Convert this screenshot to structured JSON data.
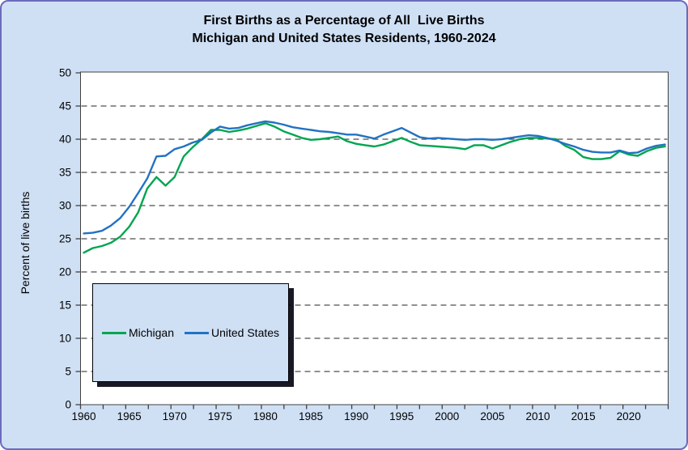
{
  "page": {
    "background_color": "#cfe0f5",
    "frame_border_color": "#6b6bbe",
    "plot_background": "#ffffff",
    "plot_border_color": "#404040",
    "gridline_color": "#4d4d4d"
  },
  "chart_data": {
    "type": "line",
    "title_line1": "First Births as a Percentage of All  Live Births",
    "title_line2": "Michigan and United States Residents, 1960-2024",
    "ylabel": "Percent of live births",
    "ylim": [
      0,
      50
    ],
    "y_tick_interval": 5,
    "y_tick_labels": [
      "0",
      "5",
      "10",
      "15",
      "20",
      "25",
      "30",
      "35",
      "40",
      "45",
      "50"
    ],
    "x_tick_labels": [
      "1960",
      "1965",
      "1970",
      "1975",
      "1980",
      "1985",
      "1990",
      "1995",
      "2000",
      "2005",
      "2010",
      "2015",
      "2020"
    ],
    "x_tick_years": [
      1960,
      1965,
      1970,
      1975,
      1980,
      1985,
      1990,
      1995,
      2000,
      2005,
      2010,
      2015,
      2020
    ],
    "minor_tick_interval_years": 2.5,
    "grid": "horizontal-dashed",
    "legend_position": "inside-lower-left",
    "x": [
      1960,
      1961,
      1962,
      1963,
      1964,
      1965,
      1966,
      1967,
      1968,
      1969,
      1970,
      1971,
      1972,
      1973,
      1974,
      1975,
      1976,
      1977,
      1978,
      1979,
      1980,
      1981,
      1982,
      1983,
      1984,
      1985,
      1986,
      1987,
      1988,
      1989,
      1990,
      1991,
      1992,
      1993,
      1994,
      1995,
      1996,
      1997,
      1998,
      1999,
      2000,
      2001,
      2002,
      2003,
      2004,
      2005,
      2006,
      2007,
      2008,
      2009,
      2010,
      2011,
      2012,
      2013,
      2014,
      2015,
      2016,
      2017,
      2018,
      2019,
      2020,
      2021,
      2022,
      2023,
      2024
    ],
    "series": [
      {
        "name": "Michigan",
        "color": "#00a550",
        "values": [
          22.9,
          23.6,
          23.9,
          24.4,
          25.3,
          26.8,
          29.0,
          32.6,
          34.3,
          33.0,
          34.3,
          37.4,
          38.8,
          40.0,
          41.4,
          41.4,
          41.1,
          41.3,
          41.6,
          42.0,
          42.4,
          41.9,
          41.2,
          40.7,
          40.2,
          39.9,
          40.0,
          40.2,
          40.4,
          39.7,
          39.3,
          39.1,
          38.9,
          39.2,
          39.7,
          40.2,
          39.6,
          39.1,
          39.0,
          38.9,
          38.8,
          38.7,
          38.5,
          39.1,
          39.1,
          38.6,
          39.1,
          39.6,
          40.0,
          40.2,
          40.2,
          40.1,
          40.0,
          39.0,
          38.4,
          37.3,
          37.0,
          37.0,
          37.2,
          38.2,
          37.7,
          37.5,
          38.2,
          38.7,
          38.9
        ]
      },
      {
        "name": "United States",
        "color": "#2272c3",
        "values": [
          25.8,
          25.9,
          26.2,
          27.0,
          28.1,
          29.8,
          31.9,
          34.1,
          37.4,
          37.5,
          38.5,
          38.9,
          39.5,
          39.9,
          41.0,
          41.9,
          41.6,
          41.7,
          42.1,
          42.4,
          42.7,
          42.5,
          42.2,
          41.8,
          41.6,
          41.4,
          41.2,
          41.1,
          40.9,
          40.7,
          40.7,
          40.4,
          40.1,
          40.7,
          41.2,
          41.7,
          41.0,
          40.3,
          40.1,
          40.2,
          40.1,
          40.0,
          39.9,
          40.0,
          40.0,
          39.9,
          40.0,
          40.2,
          40.4,
          40.6,
          40.5,
          40.2,
          39.8,
          39.3,
          38.9,
          38.4,
          38.1,
          38.0,
          38.0,
          38.3,
          37.9,
          38.0,
          38.6,
          39.0,
          39.2
        ]
      }
    ]
  }
}
